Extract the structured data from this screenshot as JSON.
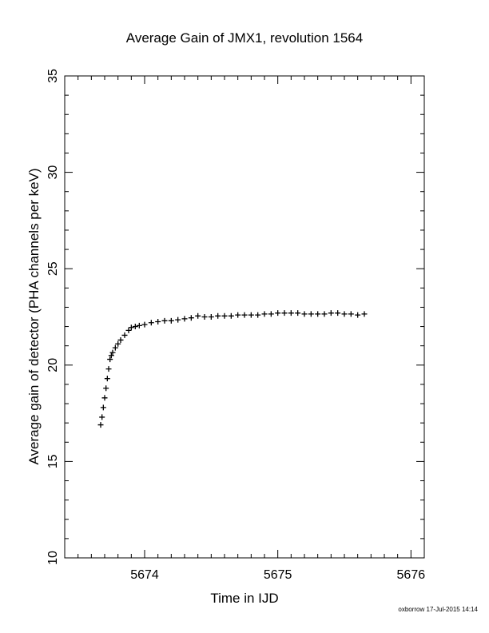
{
  "chart_data": {
    "type": "scatter",
    "title": "Average Gain of JMX1, revolution 1564",
    "xlabel": "Time in IJD",
    "ylabel": "Average gain of detector (PHA channels per keV)",
    "xlim": [
      5673.4,
      5676.1
    ],
    "ylim": [
      10,
      35
    ],
    "x_ticks": [
      5674,
      5675,
      5676
    ],
    "y_ticks": [
      10,
      15,
      20,
      25,
      30,
      35
    ],
    "grid": false,
    "marker": "plus",
    "series": [
      {
        "x": [
          5673.67,
          5673.68,
          5673.69,
          5673.7,
          5673.71,
          5673.72,
          5673.73,
          5673.74,
          5673.75,
          5673.76,
          5673.78,
          5673.8,
          5673.82,
          5673.85,
          5673.88,
          5673.9,
          5673.93,
          5673.96,
          5674.0,
          5674.05,
          5674.1,
          5674.15,
          5674.2,
          5674.25,
          5674.3,
          5674.35,
          5674.4,
          5674.45,
          5674.5,
          5674.55,
          5674.6,
          5674.65,
          5674.7,
          5674.75,
          5674.8,
          5674.85,
          5674.9,
          5674.95,
          5675.0,
          5675.05,
          5675.1,
          5675.15,
          5675.2,
          5675.25,
          5675.3,
          5675.35,
          5675.4,
          5675.45,
          5675.5,
          5675.55,
          5675.6,
          5675.65
        ],
        "y": [
          16.9,
          17.3,
          17.8,
          18.3,
          18.8,
          19.3,
          19.8,
          20.3,
          20.5,
          20.65,
          20.9,
          21.1,
          21.3,
          21.55,
          21.8,
          21.95,
          22.0,
          22.05,
          22.1,
          22.2,
          22.25,
          22.3,
          22.3,
          22.35,
          22.4,
          22.45,
          22.55,
          22.5,
          22.5,
          22.55,
          22.55,
          22.55,
          22.6,
          22.6,
          22.6,
          22.6,
          22.65,
          22.65,
          22.7,
          22.7,
          22.7,
          22.7,
          22.65,
          22.65,
          22.65,
          22.65,
          22.7,
          22.7,
          22.65,
          22.65,
          22.6,
          22.65
        ]
      }
    ]
  },
  "footer": "oxborrow 17-Jul-2015 14:14"
}
